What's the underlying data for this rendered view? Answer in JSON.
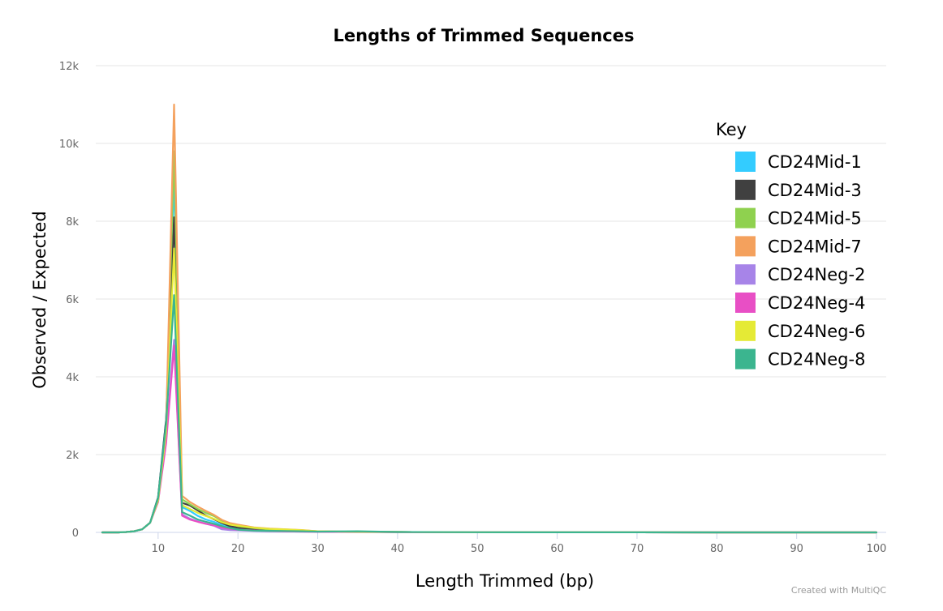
{
  "chart_data": {
    "type": "line",
    "title": "Lengths of Trimmed Sequences",
    "xlabel": "Length Trimmed (bp)",
    "ylabel": "Observed / Expected",
    "xlim": [
      3,
      100
    ],
    "ylim": [
      0,
      12000
    ],
    "x_ticks": [
      10,
      20,
      30,
      40,
      50,
      60,
      70,
      80,
      90,
      100
    ],
    "y_ticks": [
      {
        "value": 0,
        "label": "0"
      },
      {
        "value": 2000,
        "label": "2k"
      },
      {
        "value": 4000,
        "label": "4k"
      },
      {
        "value": 6000,
        "label": "6k"
      },
      {
        "value": 8000,
        "label": "8k"
      },
      {
        "value": 10000,
        "label": "10k"
      },
      {
        "value": 12000,
        "label": "12k"
      }
    ],
    "grid": true,
    "legend_title": "Key",
    "legend_position": "top-right",
    "x": [
      3,
      4,
      5,
      6,
      7,
      8,
      9,
      10,
      11,
      12,
      13,
      14,
      15,
      16,
      17,
      18,
      19,
      20,
      22,
      24,
      26,
      28,
      30,
      35,
      40,
      50,
      60,
      70,
      80,
      90,
      100
    ],
    "series": [
      {
        "name": "CD24Mid-1",
        "color": "#33ccff",
        "values": [
          0,
          0,
          0,
          10,
          30,
          80,
          250,
          900,
          2900,
          9100,
          650,
          550,
          420,
          330,
          270,
          190,
          130,
          100,
          70,
          55,
          40,
          30,
          20,
          15,
          10,
          5,
          3,
          2,
          1,
          1,
          0
        ]
      },
      {
        "name": "CD24Mid-3",
        "color": "#404040",
        "values": [
          0,
          0,
          0,
          10,
          30,
          80,
          250,
          900,
          2900,
          8100,
          760,
          690,
          560,
          430,
          340,
          240,
          160,
          120,
          80,
          60,
          45,
          30,
          20,
          15,
          10,
          5,
          3,
          2,
          1,
          1,
          0
        ]
      },
      {
        "name": "CD24Mid-5",
        "color": "#8fd14f",
        "values": [
          0,
          0,
          0,
          10,
          30,
          80,
          250,
          850,
          2700,
          9800,
          850,
          720,
          600,
          500,
          420,
          300,
          220,
          160,
          110,
          75,
          55,
          40,
          25,
          15,
          10,
          5,
          3,
          2,
          1,
          1,
          0
        ]
      },
      {
        "name": "CD24Mid-7",
        "color": "#f4a15d",
        "values": [
          0,
          0,
          0,
          10,
          30,
          80,
          250,
          850,
          2700,
          11000,
          940,
          780,
          660,
          550,
          450,
          320,
          240,
          200,
          130,
          95,
          80,
          60,
          30,
          15,
          10,
          5,
          3,
          2,
          1,
          1,
          0
        ]
      },
      {
        "name": "CD24Neg-2",
        "color": "#a784e8",
        "values": [
          0,
          0,
          0,
          10,
          30,
          80,
          250,
          800,
          2400,
          4950,
          460,
          350,
          280,
          220,
          170,
          80,
          60,
          55,
          40,
          30,
          25,
          20,
          15,
          10,
          8,
          5,
          3,
          2,
          1,
          1,
          0
        ]
      },
      {
        "name": "CD24Neg-4",
        "color": "#e84fc5",
        "values": [
          0,
          0,
          0,
          10,
          30,
          80,
          250,
          780,
          2300,
          4800,
          430,
          330,
          270,
          220,
          180,
          120,
          90,
          70,
          50,
          35,
          25,
          20,
          15,
          10,
          8,
          5,
          3,
          2,
          1,
          1,
          0
        ]
      },
      {
        "name": "CD24Neg-6",
        "color": "#e5ea35",
        "values": [
          0,
          0,
          0,
          10,
          30,
          80,
          250,
          820,
          2600,
          7300,
          700,
          600,
          500,
          420,
          350,
          260,
          200,
          170,
          120,
          90,
          75,
          55,
          30,
          15,
          10,
          5,
          3,
          2,
          1,
          1,
          0
        ]
      },
      {
        "name": "CD24Neg-8",
        "color": "#3bb58f",
        "values": [
          0,
          0,
          0,
          10,
          30,
          80,
          250,
          880,
          2800,
          6100,
          520,
          430,
          330,
          270,
          220,
          160,
          110,
          70,
          45,
          40,
          35,
          30,
          20,
          30,
          10,
          5,
          3,
          2,
          1,
          1,
          0
        ]
      }
    ]
  },
  "credit": "Created with MultiQC"
}
